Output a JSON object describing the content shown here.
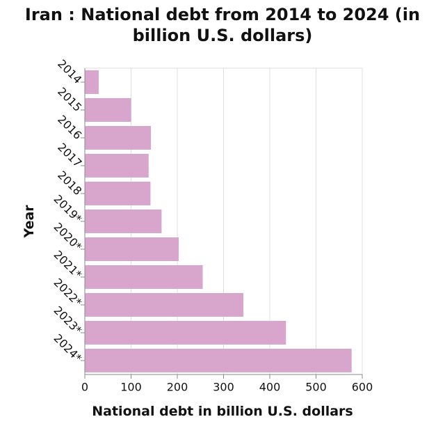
{
  "chart_data": {
    "type": "bar",
    "orientation": "horizontal",
    "title_line1": "Iran : National debt from 2014 to 2024 (in",
    "title_line2": "billion U.S. dollars)",
    "xlabel": "National debt in billion U.S. dollars",
    "ylabel": "Year",
    "categories": [
      "2014",
      "2015",
      "2016",
      "2017",
      "2018",
      "2019*",
      "2020*",
      "2021*",
      "2022*",
      "2023*",
      "2024*"
    ],
    "values": [
      30,
      100,
      143,
      138,
      142,
      166,
      203,
      255,
      343,
      435,
      577
    ],
    "xlim": [
      0,
      600
    ],
    "xticks": [
      "0",
      "100",
      "200",
      "300",
      "400",
      "500",
      "600"
    ],
    "bar_color": "#d8a5cc",
    "grid": true
  }
}
